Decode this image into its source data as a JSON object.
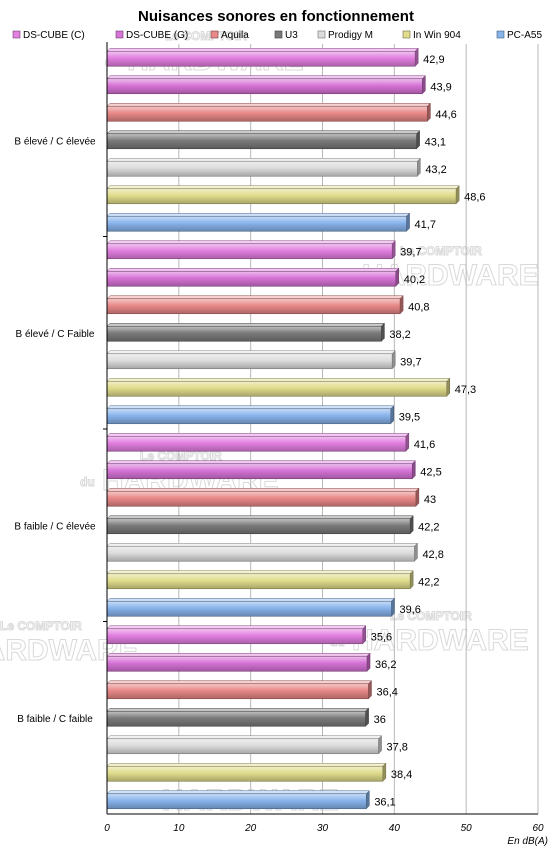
{
  "chart_data": {
    "type": "bar",
    "orientation": "horizontal",
    "title": "Nuisances sonores en fonctionnement",
    "xlabel": "En dB(A)",
    "ylabel": "",
    "xlim": [
      0,
      60
    ],
    "ticks": [
      0,
      10,
      20,
      30,
      40,
      50,
      60
    ],
    "grid": true,
    "legend_position": "top",
    "categories": [
      "B élevé / C élevée",
      "B élevé / C Faible",
      "B faible / C élevée",
      "B faible / C faible"
    ],
    "series": [
      {
        "name": "DS-CUBE (C)",
        "color": "#e27fe0",
        "values": [
          42.9,
          39.7,
          41.6,
          35.6
        ],
        "labels": [
          "42,9",
          "39,7",
          "41,6",
          "35,6"
        ]
      },
      {
        "name": "DS-CUBE (G)",
        "color": "#d673d6",
        "values": [
          43.9,
          40.2,
          42.5,
          36.2
        ],
        "labels": [
          "43,9",
          "40,2",
          "42,5",
          "36,2"
        ]
      },
      {
        "name": "Aquila",
        "color": "#e88888",
        "values": [
          44.6,
          40.8,
          43,
          36.4
        ],
        "labels": [
          "44,6",
          "40,8",
          "43",
          "36,4"
        ]
      },
      {
        "name": "U3",
        "color": "#7a7a7a",
        "values": [
          43.1,
          38.2,
          42.2,
          36
        ],
        "labels": [
          "43,1",
          "38,2",
          "42,2",
          "36"
        ]
      },
      {
        "name": "Prodigy M",
        "color": "#dcdcdc",
        "values": [
          43.2,
          39.7,
          42.8,
          37.8
        ],
        "labels": [
          "43,2",
          "39,7",
          "42,8",
          "37,8"
        ]
      },
      {
        "name": "In Win 904",
        "color": "#e0dc8c",
        "values": [
          48.6,
          47.3,
          42.2,
          38.4
        ],
        "labels": [
          "48,6",
          "47,3",
          "42,2",
          "38,4"
        ]
      },
      {
        "name": "PC-A55",
        "color": "#88b4ec",
        "values": [
          41.7,
          39.5,
          39.6,
          36.1
        ],
        "labels": [
          "41,7",
          "39,5",
          "39,6",
          "36,1"
        ]
      }
    ]
  },
  "watermark": {
    "line1": "Le COMPTOIR",
    "line2": "du",
    "line3": "HARDWARE"
  }
}
